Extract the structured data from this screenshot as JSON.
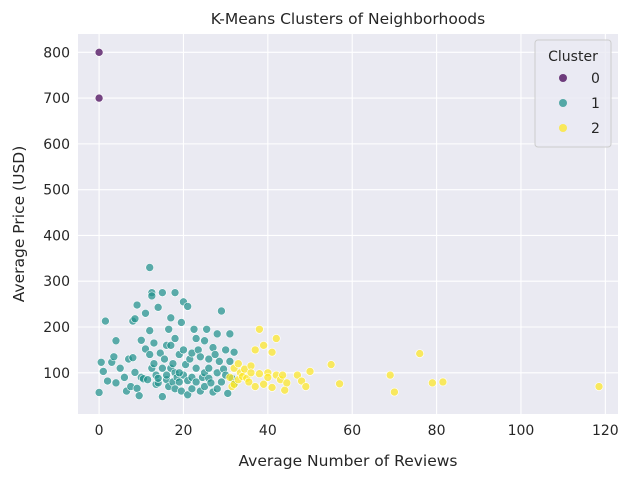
{
  "chart_data": {
    "type": "scatter",
    "title": "K-Means Clusters of Neighborhoods",
    "xlabel": "Average Number of Reviews",
    "ylabel": "Average Price (USD)",
    "xlim": [
      -5,
      123
    ],
    "ylim": [
      10,
      840
    ],
    "xticks": [
      0,
      20,
      40,
      60,
      80,
      100,
      120
    ],
    "yticks": [
      100,
      200,
      300,
      400,
      500,
      600,
      700,
      800
    ],
    "grid": true,
    "legend": {
      "title": "Cluster",
      "placement": "top-right"
    },
    "series": [
      {
        "name": "0",
        "color": "#440154",
        "points": [
          [
            0,
            800
          ],
          [
            0,
            700
          ]
        ]
      },
      {
        "name": "1",
        "color": "#21918c",
        "points": [
          [
            0,
            57
          ],
          [
            0.5,
            123
          ],
          [
            1,
            103
          ],
          [
            1.5,
            213
          ],
          [
            2,
            82
          ],
          [
            3,
            123
          ],
          [
            3.5,
            135
          ],
          [
            4,
            170
          ],
          [
            4,
            78
          ],
          [
            5,
            110
          ],
          [
            6,
            90
          ],
          [
            6.5,
            60
          ],
          [
            7,
            130
          ],
          [
            7.5,
            70
          ],
          [
            8,
            213
          ],
          [
            8,
            133
          ],
          [
            8.5,
            101
          ],
          [
            8.5,
            218
          ],
          [
            9,
            248
          ],
          [
            9,
            66
          ],
          [
            9.5,
            50
          ],
          [
            10,
            90
          ],
          [
            10,
            171
          ],
          [
            10.5,
            87
          ],
          [
            11,
            152
          ],
          [
            11,
            230
          ],
          [
            11.5,
            85
          ],
          [
            12,
            140
          ],
          [
            12,
            192
          ],
          [
            12,
            330
          ],
          [
            12.5,
            275
          ],
          [
            12.5,
            110
          ],
          [
            12.5,
            268
          ],
          [
            13,
            120
          ],
          [
            13,
            165
          ],
          [
            13.5,
            95
          ],
          [
            13.5,
            75
          ],
          [
            14,
            243
          ],
          [
            14,
            78
          ],
          [
            14,
            88
          ],
          [
            14.5,
            143
          ],
          [
            15,
            275
          ],
          [
            15,
            110
          ],
          [
            15,
            48
          ],
          [
            15.5,
            130
          ],
          [
            16,
            160
          ],
          [
            16,
            85
          ],
          [
            16,
            95
          ],
          [
            16.5,
            195
          ],
          [
            16.5,
            70
          ],
          [
            17,
            110
          ],
          [
            17,
            220
          ],
          [
            17,
            160
          ],
          [
            17.5,
            80
          ],
          [
            17.5,
            120
          ],
          [
            18,
            275
          ],
          [
            18,
            175
          ],
          [
            18,
            100
          ],
          [
            18,
            65
          ],
          [
            18.5,
            90
          ],
          [
            19,
            140
          ],
          [
            19,
            80
          ],
          [
            19.5,
            210
          ],
          [
            19.5,
            60
          ],
          [
            20,
            255
          ],
          [
            20,
            150
          ],
          [
            20,
            95
          ],
          [
            20.5,
            118
          ],
          [
            21,
            83
          ],
          [
            21,
            52
          ],
          [
            21,
            245
          ],
          [
            21.5,
            130
          ],
          [
            22,
            143
          ],
          [
            22,
            90
          ],
          [
            22,
            65
          ],
          [
            22.5,
            195
          ],
          [
            23,
            110
          ],
          [
            23,
            175
          ],
          [
            23,
            80
          ],
          [
            23.5,
            150
          ],
          [
            24,
            60
          ],
          [
            24,
            135
          ],
          [
            24.5,
            90
          ],
          [
            25,
            100
          ],
          [
            25,
            170
          ],
          [
            25,
            70
          ],
          [
            25.5,
            195
          ],
          [
            26,
            88
          ],
          [
            26,
            130
          ],
          [
            26.5,
            78
          ],
          [
            27,
            155
          ],
          [
            27,
            58
          ],
          [
            27.5,
            140
          ],
          [
            28,
            185
          ],
          [
            28,
            100
          ],
          [
            28,
            65
          ],
          [
            28.5,
            125
          ],
          [
            29,
            235
          ],
          [
            29,
            80
          ],
          [
            29.5,
            108
          ],
          [
            30,
            150
          ],
          [
            30,
            95
          ],
          [
            30.5,
            55
          ],
          [
            31,
            185
          ],
          [
            31,
            125
          ],
          [
            31.5,
            88
          ],
          [
            32,
            145
          ],
          [
            32,
            75
          ],
          [
            26,
            110
          ],
          [
            19,
            100
          ]
        ]
      },
      {
        "name": "2",
        "color": "#fde725",
        "points": [
          [
            31,
            90
          ],
          [
            31.5,
            70
          ],
          [
            32,
            110
          ],
          [
            32,
            75
          ],
          [
            33,
            120
          ],
          [
            33,
            85
          ],
          [
            33.5,
            100
          ],
          [
            34,
            92
          ],
          [
            34.5,
            108
          ],
          [
            35,
            88
          ],
          [
            35.5,
            80
          ],
          [
            36,
            115
          ],
          [
            36,
            100
          ],
          [
            37,
            70
          ],
          [
            37,
            150
          ],
          [
            38,
            195
          ],
          [
            38,
            98
          ],
          [
            39,
            160
          ],
          [
            39,
            75
          ],
          [
            40,
            100
          ],
          [
            40,
            90
          ],
          [
            41,
            145
          ],
          [
            41,
            68
          ],
          [
            42,
            175
          ],
          [
            42,
            95
          ],
          [
            43,
            85
          ],
          [
            43.5,
            95
          ],
          [
            44,
            62
          ],
          [
            44.5,
            78
          ],
          [
            47,
            95
          ],
          [
            48,
            82
          ],
          [
            49,
            70
          ],
          [
            50,
            103
          ],
          [
            55,
            118
          ],
          [
            57,
            76
          ],
          [
            69,
            95
          ],
          [
            70,
            58
          ],
          [
            76,
            142
          ],
          [
            79,
            78
          ],
          [
            81.5,
            80
          ],
          [
            118.5,
            70
          ]
        ]
      }
    ]
  }
}
